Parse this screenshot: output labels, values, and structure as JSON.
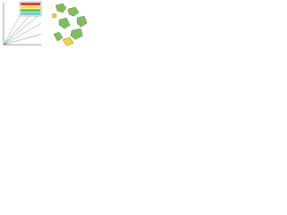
{
  "legend": {
    "colors": [
      "#e8413a",
      "#f3e23a",
      "#6cc24a",
      "#5fd0d8"
    ]
  },
  "map": {
    "land_color": "#7fbf5a",
    "highlight_color": "#f1d43a"
  }
}
